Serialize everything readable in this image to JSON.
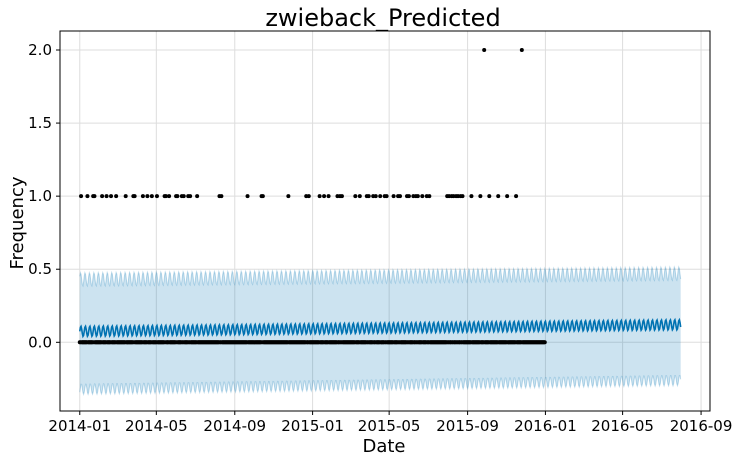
{
  "chart_data": {
    "type": "scatter",
    "title": "zwieback_Predicted",
    "xlabel": "Date",
    "ylabel": "Frequency",
    "xlim": [
      "2013-12-01",
      "2016-09-15"
    ],
    "ylim": [
      -0.47,
      2.13
    ],
    "x_ticks": [
      "2014-01",
      "2014-05",
      "2014-09",
      "2015-01",
      "2015-05",
      "2015-09",
      "2016-01",
      "2016-05",
      "2016-09"
    ],
    "y_ticks": [
      0.0,
      0.5,
      1.0,
      1.5,
      2.0
    ],
    "y_tick_labels": [
      "0.0",
      "0.5",
      "1.0",
      "1.5",
      "2.0"
    ],
    "grid": true,
    "colors": {
      "observed": "#000000",
      "forecast_line": "#0072b2",
      "uncertainty_band": "#0072b2",
      "grid": "#dddddd",
      "axes": "#000000"
    },
    "observed": {
      "name": "",
      "x_range": [
        "2014-01-01",
        "2015-12-31"
      ],
      "zero_value": 0,
      "nonzero_points": [
        {
          "x": "2014-01-03",
          "y": 1
        },
        {
          "x": "2014-01-13",
          "y": 1
        },
        {
          "x": "2014-01-22",
          "y": 1
        },
        {
          "x": "2014-01-24",
          "y": 1
        },
        {
          "x": "2014-02-05",
          "y": 1
        },
        {
          "x": "2014-02-12",
          "y": 1
        },
        {
          "x": "2014-02-19",
          "y": 1
        },
        {
          "x": "2014-02-27",
          "y": 1
        },
        {
          "x": "2014-03-14",
          "y": 1
        },
        {
          "x": "2014-03-26",
          "y": 1
        },
        {
          "x": "2014-03-28",
          "y": 1
        },
        {
          "x": "2014-04-10",
          "y": 1
        },
        {
          "x": "2014-04-17",
          "y": 1
        },
        {
          "x": "2014-04-24",
          "y": 1
        },
        {
          "x": "2014-05-02",
          "y": 1
        },
        {
          "x": "2014-05-14",
          "y": 1
        },
        {
          "x": "2014-05-16",
          "y": 1
        },
        {
          "x": "2014-05-21",
          "y": 1
        },
        {
          "x": "2014-06-01",
          "y": 1
        },
        {
          "x": "2014-06-03",
          "y": 1
        },
        {
          "x": "2014-06-10",
          "y": 1
        },
        {
          "x": "2014-06-13",
          "y": 1
        },
        {
          "x": "2014-06-20",
          "y": 1
        },
        {
          "x": "2014-06-23",
          "y": 1
        },
        {
          "x": "2014-07-04",
          "y": 1
        },
        {
          "x": "2014-08-08",
          "y": 1
        },
        {
          "x": "2014-08-11",
          "y": 1
        },
        {
          "x": "2014-09-21",
          "y": 1
        },
        {
          "x": "2014-10-13",
          "y": 1
        },
        {
          "x": "2014-10-15",
          "y": 1
        },
        {
          "x": "2014-11-24",
          "y": 1
        },
        {
          "x": "2014-12-22",
          "y": 1
        },
        {
          "x": "2014-12-26",
          "y": 1
        },
        {
          "x": "2015-01-12",
          "y": 1
        },
        {
          "x": "2015-01-19",
          "y": 1
        },
        {
          "x": "2015-01-26",
          "y": 1
        },
        {
          "x": "2015-02-09",
          "y": 1
        },
        {
          "x": "2015-02-13",
          "y": 1
        },
        {
          "x": "2015-02-16",
          "y": 1
        },
        {
          "x": "2015-03-09",
          "y": 1
        },
        {
          "x": "2015-03-16",
          "y": 1
        },
        {
          "x": "2015-03-27",
          "y": 1
        },
        {
          "x": "2015-03-30",
          "y": 1
        },
        {
          "x": "2015-04-06",
          "y": 1
        },
        {
          "x": "2015-04-10",
          "y": 1
        },
        {
          "x": "2015-04-17",
          "y": 1
        },
        {
          "x": "2015-04-24",
          "y": 1
        },
        {
          "x": "2015-04-27",
          "y": 1
        },
        {
          "x": "2015-05-08",
          "y": 1
        },
        {
          "x": "2015-05-15",
          "y": 1
        },
        {
          "x": "2015-05-18",
          "y": 1
        },
        {
          "x": "2015-05-29",
          "y": 1
        },
        {
          "x": "2015-06-01",
          "y": 1
        },
        {
          "x": "2015-06-08",
          "y": 1
        },
        {
          "x": "2015-06-12",
          "y": 1
        },
        {
          "x": "2015-06-15",
          "y": 1
        },
        {
          "x": "2015-06-22",
          "y": 1
        },
        {
          "x": "2015-06-29",
          "y": 1
        },
        {
          "x": "2015-07-03",
          "y": 1
        },
        {
          "x": "2015-07-31",
          "y": 1
        },
        {
          "x": "2015-08-03",
          "y": 1
        },
        {
          "x": "2015-08-07",
          "y": 1
        },
        {
          "x": "2015-08-10",
          "y": 1
        },
        {
          "x": "2015-08-14",
          "y": 1
        },
        {
          "x": "2015-08-17",
          "y": 1
        },
        {
          "x": "2015-08-21",
          "y": 1
        },
        {
          "x": "2015-08-24",
          "y": 1
        },
        {
          "x": "2015-09-07",
          "y": 1
        },
        {
          "x": "2015-09-21",
          "y": 1
        },
        {
          "x": "2015-10-05",
          "y": 1
        },
        {
          "x": "2015-10-19",
          "y": 1
        },
        {
          "x": "2015-11-02",
          "y": 1
        },
        {
          "x": "2015-11-16",
          "y": 1
        },
        {
          "x": "2015-09-27",
          "y": 2
        },
        {
          "x": "2015-11-25",
          "y": 2
        }
      ]
    },
    "forecast": {
      "x_range": [
        "2014-01-01",
        "2016-07-31"
      ],
      "yhat_trend_start": 0.075,
      "yhat_trend_end": 0.12,
      "weekly_amplitude": 0.035,
      "lower_band_start": -0.32,
      "lower_band_end": -0.26,
      "upper_band_start": 0.43,
      "upper_band_end": 0.47,
      "band_noise": 0.045
    }
  }
}
